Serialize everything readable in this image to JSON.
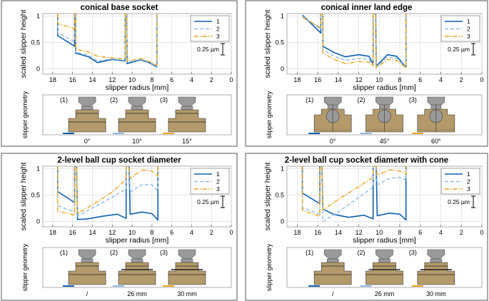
{
  "colors": {
    "s1": "#0e5fae",
    "s2": "#8fbbe8",
    "s3": "#e8a417",
    "grid": "#dcdcdc",
    "shape_grey": "#9a9a9a",
    "shape_tan": "#b49a6b"
  },
  "chart_data": [
    {
      "type": "line",
      "title": "conical base socket",
      "xlabel": "slipper radius [mm]",
      "ylabel": "scaled slipper height",
      "xlim": [
        19,
        0
      ],
      "ylim": [
        -0.1,
        1.05
      ],
      "xticks": [
        "18",
        "16",
        "14",
        "12",
        "10",
        "8",
        "6",
        "4",
        "2",
        "0"
      ],
      "yticks": [
        "0",
        "0.5",
        "1"
      ],
      "legend": [
        "1",
        "2",
        "3"
      ],
      "scale_label": "0.25 µm",
      "series": [
        {
          "name": "1",
          "style": "solid",
          "points": [
            [
              17.5,
              1.05
            ],
            [
              17.5,
              0.63
            ],
            [
              15.8,
              0.43
            ],
            [
              15.8,
              1.05
            ],
            [
              15.7,
              1.05
            ],
            [
              15.7,
              0.3
            ],
            [
              14.4,
              0.23
            ],
            [
              13.5,
              0.12
            ],
            [
              12,
              0.18
            ],
            [
              10.7,
              0.15
            ],
            [
              10.7,
              1.05
            ],
            [
              10.55,
              1.05
            ],
            [
              10.5,
              0.1
            ],
            [
              9.2,
              0.17
            ],
            [
              8.4,
              0.13
            ],
            [
              7.5,
              0.04
            ],
            [
              7.5,
              1.05
            ]
          ]
        },
        {
          "name": "2",
          "style": "dashed",
          "points": [
            [
              17.5,
              1.05
            ],
            [
              17.5,
              0.68
            ],
            [
              15.8,
              0.52
            ],
            [
              15.8,
              1.05
            ],
            [
              15.7,
              1.05
            ],
            [
              15.7,
              0.32
            ],
            [
              14.4,
              0.26
            ],
            [
              13.5,
              0.15
            ],
            [
              12,
              0.19
            ],
            [
              10.7,
              0.16
            ],
            [
              10.7,
              1.05
            ],
            [
              10.55,
              1.05
            ],
            [
              10.5,
              0.12
            ],
            [
              9.2,
              0.18
            ],
            [
              8.4,
              0.14
            ],
            [
              7.5,
              0.05
            ],
            [
              7.5,
              1.05
            ]
          ]
        },
        {
          "name": "3",
          "style": "dashdot",
          "points": [
            [
              17.5,
              1.05
            ],
            [
              17.5,
              0.86
            ],
            [
              15.8,
              0.76
            ],
            [
              15.8,
              1.05
            ],
            [
              15.7,
              1.05
            ],
            [
              15.7,
              0.38
            ],
            [
              14.4,
              0.32
            ],
            [
              13.5,
              0.24
            ],
            [
              12,
              0.21
            ],
            [
              10.7,
              0.19
            ],
            [
              10.7,
              1.05
            ],
            [
              10.55,
              1.05
            ],
            [
              10.5,
              0.14
            ],
            [
              9.2,
              0.2
            ],
            [
              8.4,
              0.15
            ],
            [
              7.5,
              0.07
            ],
            [
              7.5,
              1.05
            ]
          ]
        }
      ],
      "geometry_label": "slipper geometry",
      "geometry": {
        "variant": "base",
        "labels": [
          "(1)",
          "(2)",
          "(3)"
        ],
        "values": [
          "0°",
          "10°",
          "15°"
        ]
      }
    },
    {
      "type": "line",
      "title": "conical inner land edge",
      "xlabel": "slipper radius [mm]",
      "ylabel": "scaled slipper height",
      "xlim": [
        19,
        0
      ],
      "ylim": [
        -0.1,
        1.05
      ],
      "xticks": [
        "18",
        "16",
        "14",
        "12",
        "10",
        "8",
        "6",
        "4",
        "2",
        "0"
      ],
      "yticks": [
        "0",
        "0.5",
        "1"
      ],
      "legend": [
        "1",
        "2",
        "3"
      ],
      "scale_label": "0.25 µm",
      "series": [
        {
          "name": "1",
          "style": "solid",
          "points": [
            [
              17.5,
              1.02
            ],
            [
              15.7,
              0.68
            ],
            [
              15.7,
              1.05
            ],
            [
              15.5,
              1.05
            ],
            [
              15.5,
              0.43
            ],
            [
              14.4,
              0.31
            ],
            [
              13.3,
              0.23
            ],
            [
              12,
              0.27
            ],
            [
              11,
              0.24
            ],
            [
              10.6,
              0.09
            ],
            [
              10.6,
              1.05
            ],
            [
              10.35,
              1.05
            ],
            [
              10.3,
              0.05
            ],
            [
              9.2,
              0.27
            ],
            [
              8.3,
              0.24
            ],
            [
              7.4,
              0.03
            ],
            [
              7.4,
              1.05
            ]
          ]
        },
        {
          "name": "2",
          "style": "dashed",
          "points": [
            [
              17.5,
              1.0
            ],
            [
              15.7,
              0.75
            ],
            [
              15.7,
              1.05
            ],
            [
              15.5,
              1.05
            ],
            [
              15.5,
              0.36
            ],
            [
              14.4,
              0.24
            ],
            [
              13.3,
              0.16
            ],
            [
              12,
              0.2
            ],
            [
              11,
              0.18
            ],
            [
              10.6,
              0.07
            ],
            [
              10.6,
              1.05
            ],
            [
              10.35,
              1.05
            ],
            [
              10.3,
              0.04
            ],
            [
              9.2,
              0.22
            ],
            [
              8.3,
              0.2
            ],
            [
              7.4,
              0.03
            ],
            [
              7.4,
              1.05
            ]
          ]
        },
        {
          "name": "3",
          "style": "dashdot",
          "points": [
            [
              17.5,
              0.98
            ],
            [
              15.7,
              0.78
            ],
            [
              15.7,
              1.05
            ],
            [
              15.5,
              1.05
            ],
            [
              15.5,
              0.3
            ],
            [
              14.4,
              0.18
            ],
            [
              13.3,
              0.1
            ],
            [
              12,
              0.14
            ],
            [
              11,
              0.13
            ],
            [
              10.6,
              0.05
            ],
            [
              10.6,
              1.05
            ],
            [
              10.35,
              1.05
            ],
            [
              10.3,
              0.02
            ],
            [
              9.2,
              0.18
            ],
            [
              8.3,
              0.16
            ],
            [
              7.4,
              0.02
            ],
            [
              7.4,
              1.05
            ]
          ]
        }
      ],
      "geometry_label": "slipper geometry",
      "geometry": {
        "variant": "inner",
        "labels": [
          "(1)",
          "(2)",
          "(3)"
        ],
        "values": [
          "0°",
          "45°",
          "60°"
        ]
      }
    },
    {
      "type": "line",
      "title": "2-level ball cup socket diameter",
      "xlabel": "slipper radius [mm]",
      "ylabel": "scaled slipper height",
      "xlim": [
        19,
        0
      ],
      "ylim": [
        -0.1,
        1.05
      ],
      "xticks": [
        "18",
        "16",
        "14",
        "12",
        "10",
        "8",
        "6",
        "4",
        "2",
        "0"
      ],
      "yticks": [
        "0",
        "0.5",
        "1"
      ],
      "legend": [
        "1",
        "2",
        "3"
      ],
      "scale_label": "0.25 µm",
      "series": [
        {
          "name": "1",
          "style": "solid",
          "points": [
            [
              17.5,
              1.05
            ],
            [
              17.5,
              0.57
            ],
            [
              15.8,
              0.36
            ],
            [
              15.8,
              1.05
            ],
            [
              15.6,
              1.05
            ],
            [
              15.5,
              0.04
            ],
            [
              14.5,
              0.05
            ],
            [
              13,
              0.1
            ],
            [
              11.5,
              0.14
            ],
            [
              10.6,
              0.06
            ],
            [
              10.6,
              1.05
            ],
            [
              10.3,
              1.05
            ],
            [
              10.2,
              0.14
            ],
            [
              9,
              0.18
            ],
            [
              8,
              0.15
            ],
            [
              7.4,
              0.03
            ],
            [
              7.4,
              1.05
            ]
          ]
        },
        {
          "name": "2",
          "style": "dashed",
          "points": [
            [
              17.5,
              1.05
            ],
            [
              17.5,
              0.3
            ],
            [
              15.8,
              0.18
            ],
            [
              15.8,
              1.05
            ],
            [
              15.6,
              1.05
            ],
            [
              15.5,
              0.1
            ],
            [
              14,
              0.26
            ],
            [
              12,
              0.46
            ],
            [
              10.6,
              0.62
            ],
            [
              10.6,
              1.05
            ],
            [
              10.3,
              1.05
            ],
            [
              10.2,
              0.56
            ],
            [
              9,
              0.7
            ],
            [
              8,
              0.7
            ],
            [
              7.4,
              0.58
            ],
            [
              7.4,
              1.05
            ]
          ]
        },
        {
          "name": "3",
          "style": "dashdot",
          "points": [
            [
              17.5,
              1.05
            ],
            [
              17.5,
              0.2
            ],
            [
              15.8,
              0.12
            ],
            [
              15.8,
              1.05
            ],
            [
              15.6,
              1.05
            ],
            [
              15.5,
              0.15
            ],
            [
              14,
              0.32
            ],
            [
              12,
              0.56
            ],
            [
              10.6,
              0.8
            ],
            [
              10.6,
              1.05
            ],
            [
              10.3,
              1.05
            ],
            [
              10.2,
              0.82
            ],
            [
              9,
              0.98
            ],
            [
              8,
              0.96
            ],
            [
              7.4,
              0.86
            ],
            [
              7.4,
              1.05
            ]
          ]
        }
      ],
      "geometry_label": "slipper geometry",
      "geometry": {
        "variant": "cup",
        "labels": [
          "(1)",
          "(2)",
          "(3)"
        ],
        "values": [
          "/",
          "26 mm",
          "30 mm"
        ]
      }
    },
    {
      "type": "line",
      "title": "2-level ball cup socket diameter with cone",
      "xlabel": "slipper radius [mm]",
      "ylabel": "scaled slipper height",
      "xlim": [
        19,
        0
      ],
      "ylim": [
        -0.1,
        1.05
      ],
      "xticks": [
        "18",
        "16",
        "14",
        "12",
        "10",
        "8",
        "6",
        "4",
        "2",
        "0"
      ],
      "yticks": [
        "0",
        "0.5",
        "1"
      ],
      "legend": [
        "1",
        "2",
        "3"
      ],
      "scale_label": "0.25 µm",
      "series": [
        {
          "name": "1",
          "style": "solid",
          "points": [
            [
              17.5,
              1.05
            ],
            [
              17.5,
              0.54
            ],
            [
              15.8,
              0.34
            ],
            [
              15.8,
              1.05
            ],
            [
              15.6,
              1.05
            ],
            [
              15.5,
              0.24
            ],
            [
              14.5,
              0.14
            ],
            [
              13,
              0.08
            ],
            [
              11.5,
              0.12
            ],
            [
              10.6,
              0.05
            ],
            [
              10.6,
              1.05
            ],
            [
              10.3,
              1.05
            ],
            [
              10.2,
              0.11
            ],
            [
              9,
              0.16
            ],
            [
              8,
              0.14
            ],
            [
              7.4,
              0.03
            ],
            [
              7.4,
              1.05
            ]
          ]
        },
        {
          "name": "2",
          "style": "dashed",
          "points": [
            [
              17.5,
              1.05
            ],
            [
              17.5,
              0.26
            ],
            [
              15.8,
              0.14
            ],
            [
              15.8,
              1.05
            ],
            [
              15.6,
              1.05
            ],
            [
              15.5,
              0.0
            ],
            [
              14,
              0.18
            ],
            [
              12,
              0.46
            ],
            [
              10.6,
              0.65
            ],
            [
              10.6,
              1.05
            ],
            [
              10.3,
              1.05
            ],
            [
              10.2,
              0.7
            ],
            [
              9,
              0.82
            ],
            [
              8,
              0.84
            ],
            [
              7.4,
              0.78
            ],
            [
              7.4,
              1.05
            ]
          ]
        },
        {
          "name": "3",
          "style": "dashdot",
          "points": [
            [
              17.5,
              1.05
            ],
            [
              17.5,
              0.21
            ],
            [
              15.8,
              0.1
            ],
            [
              15.8,
              1.05
            ],
            [
              15.6,
              1.05
            ],
            [
              15.5,
              0.22
            ],
            [
              14,
              0.42
            ],
            [
              12,
              0.66
            ],
            [
              10.6,
              0.84
            ],
            [
              10.6,
              1.05
            ],
            [
              10.3,
              1.05
            ],
            [
              10.2,
              0.88
            ],
            [
              9,
              0.98
            ],
            [
              8,
              0.96
            ],
            [
              7.4,
              0.9
            ],
            [
              7.4,
              1.05
            ]
          ]
        }
      ],
      "geometry_label": "slipper geometry",
      "geometry": {
        "variant": "cone",
        "labels": [
          "(1)",
          "(2)",
          "(3)"
        ],
        "values": [
          "/",
          "26 mm",
          "30 mm"
        ]
      }
    }
  ]
}
